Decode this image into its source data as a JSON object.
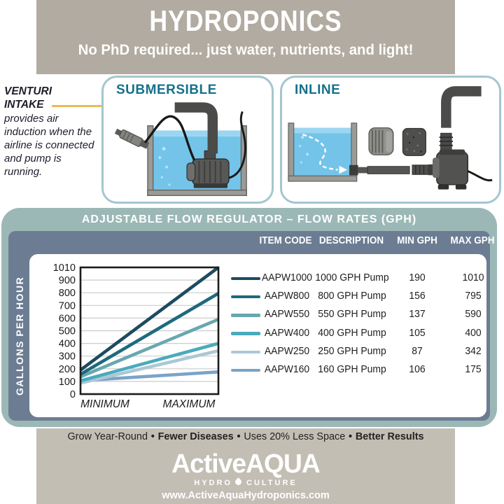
{
  "header": {
    "title": "HYDROPONICS",
    "subtitle": "No PhD required... just water, nutrients, and light!"
  },
  "venturi_note": {
    "title": "VENTURI\nINTAKE",
    "body": "provides air induction when the airline is connected and pump is running."
  },
  "panels": {
    "submersible_label": "SUBMERSIBLE",
    "inline_label": "INLINE"
  },
  "flow_section": {
    "title": "ADJUSTABLE FLOW REGULATOR – FLOW RATES (GPH)",
    "columns": [
      "ITEM CODE",
      "DESCRIPTION",
      "MIN GPH",
      "MAX GPH"
    ],
    "y_axis_label": "GALLONS PER HOUR"
  },
  "chart_data": {
    "type": "line",
    "title": "ADJUSTABLE FLOW REGULATOR – FLOW RATES (GPH)",
    "xlabel": "",
    "ylabel": "GALLONS PER HOUR",
    "x_categories": [
      "MINIMUM",
      "MAXIMUM"
    ],
    "y_ticks_top_to_bottom": [
      1010,
      900,
      800,
      700,
      600,
      500,
      400,
      300,
      200,
      100,
      0
    ],
    "ylim": [
      0,
      1010
    ],
    "grid": true,
    "legend_position": "right-table",
    "series": [
      {
        "item_code": "AAPW1000",
        "description": "1000 GPH Pump",
        "min_gph": 190,
        "max_gph": 1010,
        "color": "#1d4b5f"
      },
      {
        "item_code": "AAPW800",
        "description": "800 GPH Pump",
        "min_gph": 156,
        "max_gph": 795,
        "color": "#1d6a7d"
      },
      {
        "item_code": "AAPW550",
        "description": "550 GPH Pump",
        "min_gph": 137,
        "max_gph": 590,
        "color": "#68a7b0"
      },
      {
        "item_code": "AAPW400",
        "description": "400 GPH Pump",
        "min_gph": 105,
        "max_gph": 400,
        "color": "#4aaabe"
      },
      {
        "item_code": "AAPW250",
        "description": "250 GPH Pump",
        "min_gph": 87,
        "max_gph": 342,
        "color": "#abc8d4"
      },
      {
        "item_code": "AAPW160",
        "description": "160 GPH Pump",
        "min_gph": 106,
        "max_gph": 175,
        "color": "#7ba3c9"
      }
    ]
  },
  "footer": {
    "tagline": [
      {
        "text": "Grow Year-Round",
        "bold": false
      },
      {
        "text": "Fewer Diseases",
        "bold": true
      },
      {
        "text": "Uses 20% Less Space",
        "bold": false
      },
      {
        "text": "Better Results",
        "bold": true
      }
    ],
    "logo": {
      "brand": "ActiveAQUA",
      "tag_left": "HYDRO",
      "tag_right": "CULTURE",
      "website": "www.ActiveAquaHydroponics.com"
    }
  },
  "colors": {
    "band_top": "#b2aba1",
    "band_bottom": "#c3beb4",
    "flow_panel": "#9cb8b6",
    "flow_inner": "#6c7d93",
    "panel_border": "#a4c6cf",
    "teal_heading": "#15708a",
    "connector_yellow": "#ecb94f",
    "water_blue": "#74c4ea"
  }
}
